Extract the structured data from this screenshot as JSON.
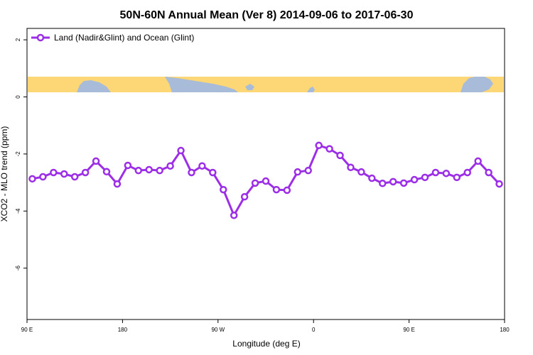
{
  "chart_data": {
    "type": "line",
    "title": "50N-60N Annual Mean (Ver 8)   2014-09-06 to 2017-06-30",
    "xlabel": "Longitude (deg E)",
    "ylabel": "XCO2 - MLO trend (ppm)",
    "xlim": [
      90,
      540
    ],
    "ylim": [
      -7.8,
      2.4
    ],
    "x_ticks": [
      {
        "value": 90,
        "label": "90 E"
      },
      {
        "value": 180,
        "label": "180"
      },
      {
        "value": 270,
        "label": "90 W"
      },
      {
        "value": 360,
        "label": "0"
      },
      {
        "value": 450,
        "label": "90 E"
      },
      {
        "value": 540,
        "label": "180"
      }
    ],
    "y_ticks": [
      {
        "value": 2,
        "label": "2"
      },
      {
        "value": 0,
        "label": "0"
      },
      {
        "value": -2,
        "label": "-2"
      },
      {
        "value": -4,
        "label": "-4"
      },
      {
        "value": -6,
        "label": "-6"
      }
    ],
    "series": [
      {
        "name": "Land (Nadir&Glint) and Ocean (Glint)",
        "color": "#9b2ee6",
        "x": [
          95,
          105,
          115,
          125,
          135,
          145,
          155,
          165,
          175,
          185,
          195,
          205,
          215,
          225,
          235,
          245,
          255,
          265,
          275,
          285,
          295,
          305,
          315,
          325,
          335,
          345,
          355,
          365,
          375,
          385,
          395,
          405,
          415,
          425,
          435,
          445,
          455,
          465,
          475,
          485,
          495,
          505,
          515,
          525,
          535
        ],
        "y": [
          -2.87,
          -2.8,
          -2.65,
          -2.7,
          -2.8,
          -2.65,
          -2.25,
          -2.62,
          -3.05,
          -2.4,
          -2.58,
          -2.55,
          -2.58,
          -2.42,
          -1.88,
          -2.65,
          -2.42,
          -2.65,
          -3.25,
          -4.15,
          -3.5,
          -3.02,
          -2.95,
          -3.25,
          -3.27,
          -2.63,
          -2.58,
          -1.7,
          -1.82,
          -2.05,
          -2.47,
          -2.63,
          -2.85,
          -3.03,
          -2.97,
          -3.02,
          -2.9,
          -2.82,
          -2.65,
          -2.68,
          -2.82,
          -2.65,
          -2.25,
          -2.65,
          -3.05
        ]
      }
    ],
    "legend": {
      "position": "top-left"
    },
    "grid": false,
    "map_band": {
      "land_color": "#a8bbd8",
      "ocean_color": "#fdd776"
    }
  }
}
